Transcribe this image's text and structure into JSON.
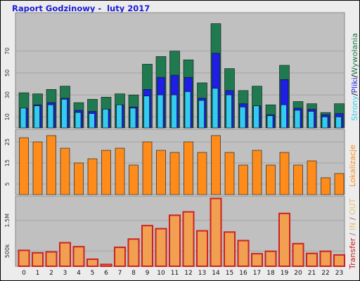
{
  "title": "Raport Godzinowy -  luty 2017",
  "chart_data": [
    {
      "type": "bar",
      "categories": [
        "0",
        "1",
        "2",
        "3",
        "4",
        "5",
        "6",
        "7",
        "8",
        "9",
        "10",
        "11",
        "12",
        "13",
        "14",
        "15",
        "16",
        "17",
        "18",
        "19",
        "20",
        "21",
        "22",
        "23"
      ],
      "series": [
        {
          "name": "Wywołania",
          "color": "#1f7a4f",
          "values": [
            32,
            31,
            35,
            38,
            23,
            26,
            28,
            31,
            30,
            58,
            65,
            70,
            62,
            41,
            95,
            54,
            34,
            38,
            21,
            57,
            24,
            22,
            14,
            22
          ]
        },
        {
          "name": "Pliki",
          "color": "#1e1ee6",
          "values": [
            18,
            21,
            23,
            27,
            16,
            15,
            17,
            21,
            19,
            35,
            46,
            48,
            46,
            27,
            68,
            34,
            22,
            20,
            12,
            44,
            18,
            17,
            12,
            13
          ]
        },
        {
          "name": "Strony",
          "color": "#33ccf0",
          "values": [
            18,
            20,
            21,
            26,
            14,
            13,
            17,
            21,
            18,
            29,
            30,
            30,
            33,
            25,
            36,
            30,
            19,
            20,
            11,
            21,
            16,
            15,
            10,
            10
          ]
        }
      ],
      "yticks": [
        "10",
        "30",
        "50",
        "70"
      ],
      "ylim": [
        0,
        105
      ],
      "legend_labels": [
        "Strony",
        "Pliki",
        "Wywołania"
      ],
      "legend_separator": "/",
      "grid": true
    },
    {
      "type": "bar",
      "categories": [
        "0",
        "1",
        "2",
        "3",
        "4",
        "5",
        "6",
        "7",
        "8",
        "9",
        "10",
        "11",
        "12",
        "13",
        "14",
        "15",
        "16",
        "17",
        "18",
        "19",
        "20",
        "21",
        "22",
        "23"
      ],
      "series": [
        {
          "name": "Lokalizacje",
          "color": "#ff8c1a",
          "values": [
            27,
            25,
            28,
            22,
            15,
            17,
            21,
            22,
            14,
            25,
            21,
            20,
            25,
            20,
            28,
            20,
            14,
            21,
            14,
            20,
            14,
            16,
            8,
            10
          ]
        }
      ],
      "yticks": [
        "5",
        "15",
        "25"
      ],
      "ylim": [
        0,
        31
      ],
      "legend_labels": [
        "Lokalizacje"
      ],
      "grid": true
    },
    {
      "type": "bar",
      "categories": [
        "0",
        "1",
        "2",
        "3",
        "4",
        "5",
        "6",
        "7",
        "8",
        "9",
        "10",
        "11",
        "12",
        "13",
        "14",
        "15",
        "16",
        "17",
        "18",
        "19",
        "20",
        "21",
        "22",
        "23"
      ],
      "series": [
        {
          "name": "IN",
          "color": "#f0a050",
          "values": [
            520000,
            440000,
            470000,
            770000,
            640000,
            230000,
            60000,
            620000,
            890000,
            1330000,
            1230000,
            1670000,
            1780000,
            1160000,
            2220000,
            1120000,
            840000,
            410000,
            490000,
            1730000,
            740000,
            420000,
            490000,
            370000
          ]
        },
        {
          "name": "Transfer",
          "color": "#cc2222",
          "values": [
            520000,
            440000,
            470000,
            770000,
            640000,
            230000,
            60000,
            620000,
            890000,
            1330000,
            1230000,
            1670000,
            1780000,
            1160000,
            2220000,
            1120000,
            840000,
            410000,
            490000,
            1730000,
            740000,
            420000,
            490000,
            370000
          ]
        }
      ],
      "yticks": [
        "500k",
        "1.5M"
      ],
      "ylim": [
        0,
        2300000
      ],
      "legend_labels": [
        "Transfer",
        "IN",
        "OUT"
      ],
      "legend_separator": " / ",
      "grid": true
    }
  ]
}
